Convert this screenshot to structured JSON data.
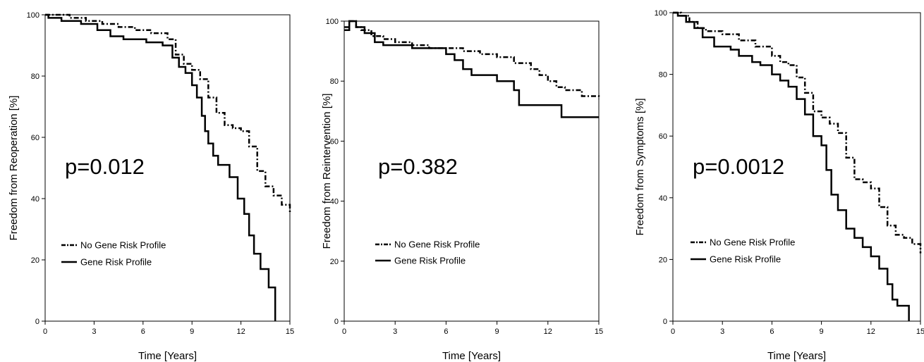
{
  "figure": {
    "colors": {
      "lines": "#000000",
      "background": "#ffffff"
    },
    "legend": {
      "no_risk": "No Gene Risk Profile",
      "risk": "Gene Risk Profile"
    }
  },
  "chart_data": [
    {
      "type": "line",
      "title": "",
      "xlabel": "Time [Years]",
      "ylabel": "Freedom from Reoperation [%]",
      "xlim": [
        0,
        15
      ],
      "ylim": [
        0,
        100
      ],
      "xticks": [
        "0",
        "3",
        "6",
        "9",
        "12",
        "15"
      ],
      "yticks": [
        "0",
        "20",
        "40",
        "60",
        "80",
        "100"
      ],
      "grid": false,
      "legend_position": "lower-left",
      "annotation": "p=0.012",
      "series": [
        {
          "name": "No Gene Risk Profile",
          "style": "dash-dot",
          "x": [
            0,
            0.5,
            1.5,
            2.5,
            3.5,
            4.5,
            5.5,
            6.5,
            7.5,
            8,
            8.5,
            9,
            9.5,
            10,
            10.5,
            11,
            11.5,
            12,
            12.5,
            13,
            13.5,
            14,
            14.5,
            15
          ],
          "y": [
            100,
            100,
            99,
            98,
            97,
            96,
            95,
            94,
            92,
            87,
            84,
            82,
            79,
            73,
            68,
            64,
            63,
            62,
            57,
            49,
            44,
            41,
            38,
            35
          ]
        },
        {
          "name": "Gene Risk Profile",
          "style": "solid",
          "x": [
            0,
            0.2,
            1,
            2.2,
            3.2,
            4,
            4.8,
            5.3,
            6.2,
            7.2,
            7.8,
            8.2,
            8.6,
            9,
            9.3,
            9.6,
            9.8,
            10,
            10.3,
            10.6,
            11.3,
            11.8,
            12.2,
            12.5,
            12.8,
            13.2,
            13.7,
            14,
            14.1
          ],
          "y": [
            100,
            99,
            98,
            97,
            95,
            93,
            92,
            92,
            91,
            90,
            86,
            83,
            81,
            77,
            73,
            67,
            62,
            58,
            54,
            51,
            47,
            40,
            35,
            28,
            22,
            17,
            11,
            11,
            0
          ]
        }
      ]
    },
    {
      "type": "line",
      "title": "",
      "xlabel": "Time [Years]",
      "ylabel": "Freedom from Reintervention [%]",
      "xlim": [
        0,
        15
      ],
      "ylim": [
        0,
        100
      ],
      "xticks": [
        "0",
        "3",
        "6",
        "9",
        "12",
        "15"
      ],
      "yticks": [
        "0",
        "20",
        "40",
        "60",
        "80",
        "100"
      ],
      "grid": false,
      "legend_position": "lower-left",
      "annotation": "p=0.382",
      "series": [
        {
          "name": "No Gene Risk Profile",
          "style": "dash-dot",
          "x": [
            0,
            0.3,
            0.7,
            1,
            1.6,
            2.3,
            3,
            4,
            5,
            6,
            7,
            8,
            9,
            10,
            11,
            11.5,
            12,
            12.5,
            13,
            14,
            15
          ],
          "y": [
            98,
            100,
            98,
            97,
            95,
            94,
            93,
            92,
            91,
            91,
            90,
            89,
            88,
            86,
            84,
            82,
            80,
            78,
            77,
            75,
            74
          ]
        },
        {
          "name": "Gene Risk Profile",
          "style": "solid",
          "x": [
            0,
            0.3,
            0.7,
            1.2,
            1.8,
            2.3,
            4,
            6,
            6.5,
            7,
            7.5,
            8,
            9,
            10,
            10.3,
            11,
            12,
            12.8,
            13.5,
            15
          ],
          "y": [
            97,
            100,
            98,
            96,
            93,
            92,
            91,
            89,
            87,
            84,
            82,
            82,
            80,
            77,
            72,
            72,
            72,
            68,
            68,
            68
          ]
        }
      ]
    },
    {
      "type": "line",
      "title": "",
      "xlabel": "Time [Years]",
      "ylabel": "Freedom from Symptoms [%]",
      "xlim": [
        0,
        15
      ],
      "ylim": [
        0,
        100
      ],
      "xticks": [
        "0",
        "3",
        "6",
        "9",
        "12",
        "15"
      ],
      "yticks": [
        "0",
        "20",
        "40",
        "60",
        "80",
        "100"
      ],
      "grid": false,
      "legend_position": "lower-left",
      "annotation": "p=0.0012",
      "series": [
        {
          "name": "No Gene Risk Profile",
          "style": "dash-dot",
          "x": [
            0,
            0.5,
            1,
            1.5,
            2,
            3,
            4,
            5,
            6,
            6.5,
            7,
            7.5,
            8,
            8.5,
            9,
            9.5,
            10,
            10.5,
            11,
            11.5,
            12,
            12.5,
            13,
            13.5,
            14,
            14.5,
            15
          ],
          "y": [
            100,
            99,
            97,
            95,
            94,
            93,
            91,
            89,
            86,
            84,
            83,
            79,
            74,
            68,
            66,
            64,
            61,
            53,
            46,
            45,
            43,
            37,
            31,
            28,
            27,
            25,
            22
          ]
        },
        {
          "name": "Gene Risk Profile",
          "style": "solid",
          "x": [
            0,
            0.3,
            0.8,
            1.3,
            1.8,
            2.5,
            3.5,
            4,
            4.8,
            5.3,
            6,
            6.5,
            7,
            7.5,
            8,
            8.5,
            9,
            9.3,
            9.6,
            10,
            10.5,
            11,
            11.5,
            12,
            12.5,
            13,
            13.3,
            13.6,
            14,
            14.3
          ],
          "y": [
            100,
            99,
            97,
            95,
            92,
            89,
            88,
            86,
            84,
            83,
            80,
            78,
            76,
            72,
            67,
            60,
            57,
            49,
            41,
            36,
            30,
            27,
            24,
            21,
            17,
            12,
            7,
            5,
            5,
            0
          ]
        }
      ]
    }
  ]
}
